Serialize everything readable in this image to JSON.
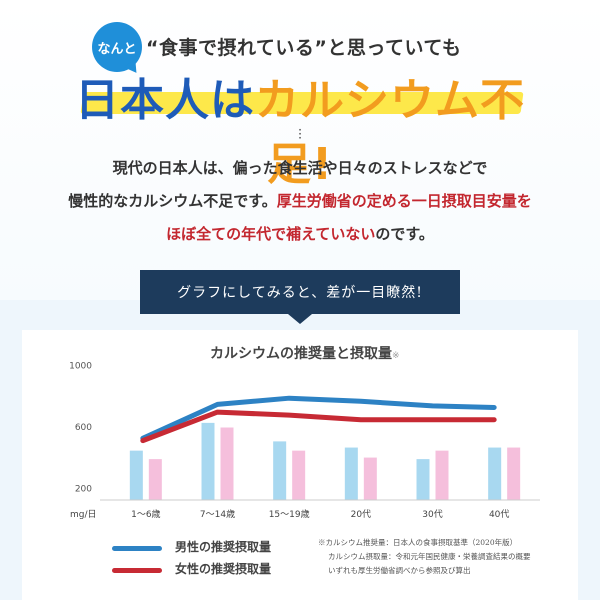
{
  "header": {
    "badge": "なんと",
    "subhead": "“食事で摂れている”と思っていても",
    "title_part1": "日本人は",
    "title_part2": "カルシウム不足!"
  },
  "intro": {
    "line1": "現代の日本人は、偏った食生活や日々のストレスなどで",
    "line2_plain": "慢性的なカルシウム不足です。",
    "line2_red": "厚生労働省の定める一日摂取目安量を",
    "line3_red": "ほぼ全ての年代で補えていない",
    "line3_plain": "のです。"
  },
  "banner": {
    "text": "グラフにしてみると、差が一目瞭然!"
  },
  "chart_data": {
    "type": "bar",
    "title": "カルシウムの推奨量と摂取量",
    "title_note": "※",
    "unit_label": "mg/日",
    "categories": [
      "1～6歳",
      "7～14歳",
      "15～19歳",
      "20代",
      "30代",
      "40代"
    ],
    "yticks": [
      "1000",
      "600",
      "200"
    ],
    "ytick_values": [
      1000,
      600,
      200
    ],
    "ylim": [
      120,
      1060
    ],
    "bar_series": [
      {
        "name": "male_intake",
        "color": "#a8d8f0",
        "values": [
          440,
          620,
          500,
          460,
          385,
          460
        ]
      },
      {
        "name": "female_intake",
        "color": "#f5bfdc",
        "values": [
          385,
          590,
          440,
          395,
          440,
          460
        ]
      }
    ],
    "series": [
      {
        "name": "男性の推奨摂取量",
        "color": "#2d82c4",
        "values": [
          520,
          740,
          780,
          760,
          730,
          720
        ]
      },
      {
        "name": "女性の推奨摂取量",
        "color": "#c72a34",
        "values": [
          505,
          690,
          670,
          640,
          640,
          640
        ]
      }
    ]
  },
  "source": {
    "line1": "※カルシウム推奨量：日本人の食事摂取基準（2020年版）",
    "line2": "カルシウム摂取量：令和元年国民健康・栄養調査結果の概要",
    "line3": "いずれも厚生労働省調べから参照及び算出"
  }
}
